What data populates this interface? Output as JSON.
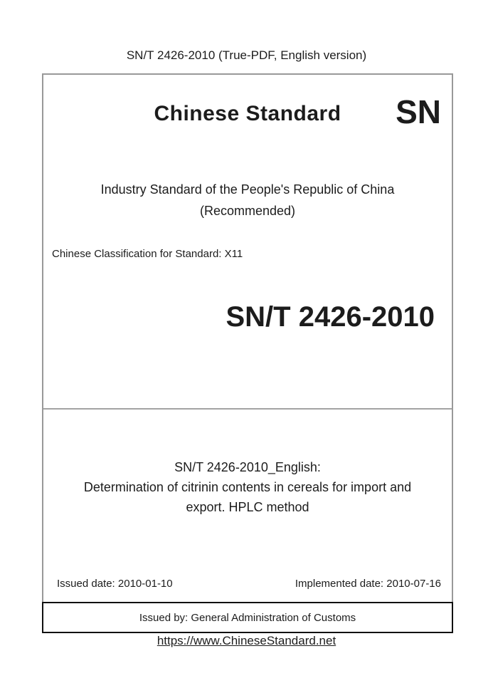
{
  "header": {
    "note": "SN/T 2426-2010 (True-PDF, English version)"
  },
  "cover": {
    "brand": {
      "title": "Chinese Standard",
      "logo": "SN"
    },
    "type_line": "Industry Standard of the People's Republic of China",
    "type_qualifier": "(Recommended)",
    "classification": "Chinese Classification for Standard: X11",
    "standard_number": "SN/T 2426-2010",
    "english_title": {
      "line1": "SN/T 2426-2010_English:",
      "line2": "Determination of citrinin contents in cereals for import and",
      "line3": "export. HPLC method"
    },
    "issued_date": "Issued date: 2010-01-10",
    "implemented_date": "Implemented date: 2010-07-16"
  },
  "issuer": {
    "text": "Issued by: General Administration of Customs"
  },
  "footer": {
    "link": "https://www.ChineseStandard.net"
  },
  "colors": {
    "text": "#1c1c1c",
    "border_gray": "#999999",
    "divider_gray": "#a3a3a3",
    "border_black": "#111111",
    "link": "#1c1c1c"
  }
}
